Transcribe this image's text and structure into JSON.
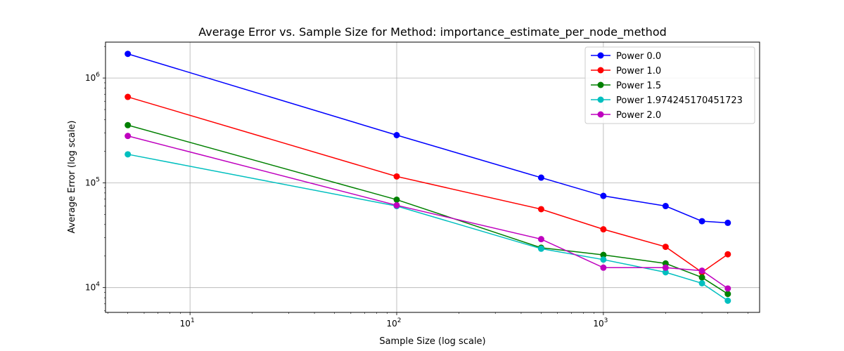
{
  "chart_data": {
    "type": "line",
    "title": "Average Error vs. Sample Size for Method: importance_estimate_per_node_method",
    "xlabel": "Sample Size (log scale)",
    "ylabel": "Average Error (log scale)",
    "xscale": "log",
    "yscale": "log",
    "xlim": [
      3.9,
      5700
    ],
    "ylim": [
      5800,
      2200000
    ],
    "grid": true,
    "legend_position": "top-right",
    "x_ticks": [
      {
        "value": 10,
        "base": "10",
        "exp": "1"
      },
      {
        "value": 100,
        "base": "10",
        "exp": "2"
      },
      {
        "value": 1000,
        "base": "10",
        "exp": "3"
      }
    ],
    "y_ticks": [
      {
        "value": 10000,
        "base": "10",
        "exp": "4"
      },
      {
        "value": 100000,
        "base": "10",
        "exp": "5"
      },
      {
        "value": 1000000,
        "base": "10",
        "exp": "6"
      }
    ],
    "x": [
      5,
      100,
      500,
      1000,
      2000,
      3000,
      4000
    ],
    "series": [
      {
        "name": "Power 0.0",
        "color": "#0000ff",
        "values": [
          1700000,
          285000,
          112000,
          75000,
          60000,
          43000,
          41500
        ]
      },
      {
        "name": "Power 1.0",
        "color": "#ff0000",
        "values": [
          660000,
          115000,
          56000,
          36000,
          24500,
          14000,
          20800
        ]
      },
      {
        "name": "Power 1.5",
        "color": "#008000",
        "values": [
          355000,
          69000,
          24000,
          20500,
          17000,
          12500,
          8700
        ]
      },
      {
        "name": "Power 1.974245170451723",
        "color": "#00bfbf",
        "values": [
          187000,
          60000,
          23500,
          18500,
          14000,
          11000,
          7500
        ]
      },
      {
        "name": "Power 2.0",
        "color": "#bf00bf",
        "values": [
          280000,
          61000,
          29000,
          15500,
          15500,
          14500,
          9800
        ]
      }
    ]
  }
}
